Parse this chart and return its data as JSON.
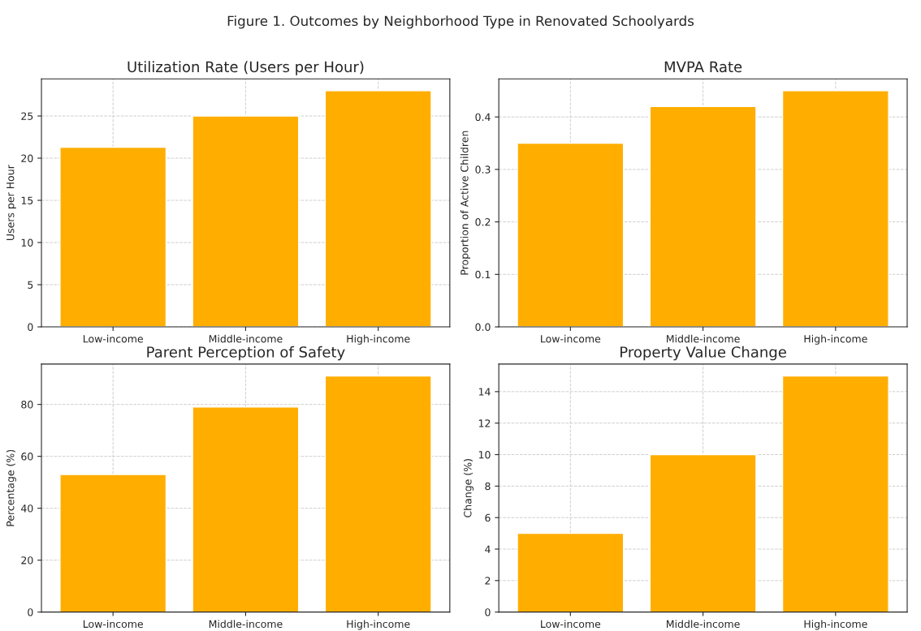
{
  "chart_data": [
    {
      "type": "bar",
      "title": "Utilization Rate (Users per Hour)",
      "ylabel": "Users per Hour",
      "annotations": [
        "Figure 1. Outcomes by Neighborhood Type in Renovated Schoolyards"
      ],
      "categories": [
        "Low-income",
        "Middle-income",
        "High-income"
      ],
      "values": [
        21.3,
        25,
        28
      ],
      "color": "#ffae00",
      "ylim": [
        0,
        29.4
      ],
      "yticks": [
        0,
        5,
        10,
        15,
        20,
        25
      ],
      "grid": true
    },
    {
      "type": "bar",
      "title": "MVPA Rate",
      "ylabel": "Proportion of Active Children",
      "categories": [
        "Low-income",
        "Middle-income",
        "High-income"
      ],
      "values": [
        0.35,
        0.42,
        0.45
      ],
      "color": "#ffae00",
      "ylim": [
        0,
        0.4725
      ],
      "yticks": [
        {
          "value": 0,
          "label": "0.0"
        },
        0.1,
        0.2,
        0.3,
        0.4
      ],
      "grid": true
    },
    {
      "type": "bar",
      "title": "Parent Perception of Safety",
      "ylabel": "Percentage (%)",
      "categories": [
        "Low-income",
        "Middle-income",
        "High-income"
      ],
      "values": [
        53,
        79,
        91
      ],
      "color": "#ffae00",
      "ylim": [
        0,
        95.55
      ],
      "yticks": [
        0,
        20,
        40,
        60,
        80
      ],
      "grid": true
    },
    {
      "type": "bar",
      "title": "Property Value Change",
      "ylabel": "Change (%)",
      "categories": [
        "Low-income",
        "Middle-income",
        "High-income"
      ],
      "values": [
        5,
        10,
        15
      ],
      "color": "#ffae00",
      "ylim": [
        0,
        15.75
      ],
      "yticks": [
        0,
        2,
        4,
        6,
        8,
        10,
        12,
        14
      ],
      "grid": true
    }
  ]
}
